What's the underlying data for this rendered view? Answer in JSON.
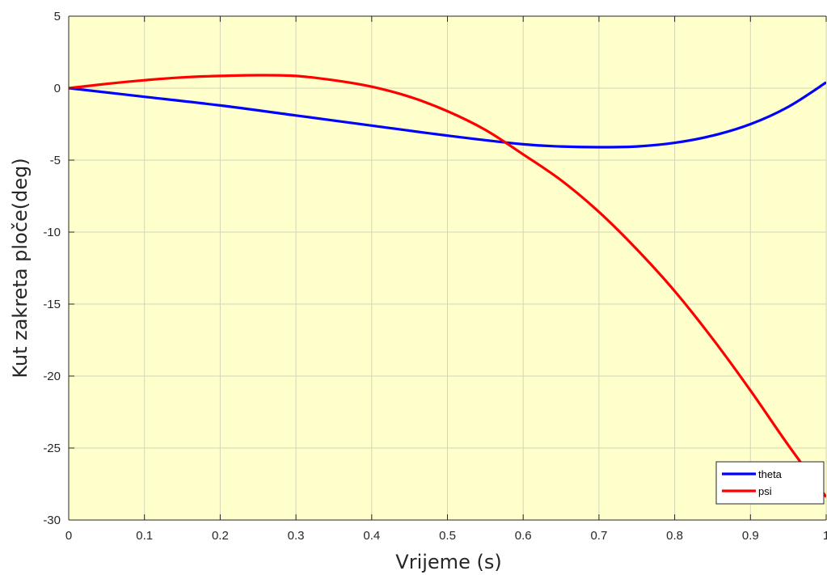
{
  "chart_data": {
    "type": "line",
    "title": "",
    "xlabel": "Vrijeme (s)",
    "ylabel": "Kut zakreta ploče(deg)",
    "xlim": [
      0,
      1
    ],
    "ylim": [
      -30,
      5
    ],
    "xticks": [
      0,
      0.1,
      0.2,
      0.3,
      0.4,
      0.5,
      0.6,
      0.7,
      0.8,
      0.9,
      1
    ],
    "xtick_labels": [
      "0",
      "0.1",
      "0.2",
      "0.3",
      "0.4",
      "0.5",
      "0.6",
      "0.7",
      "0.8",
      "0.9",
      "1"
    ],
    "yticks": [
      5,
      0,
      -5,
      -10,
      -15,
      -20,
      -25,
      -30
    ],
    "ytick_labels": [
      "5",
      "0",
      "-5",
      "-10",
      "-15",
      "-20",
      "-25",
      "-30"
    ],
    "grid": true,
    "legend_position": "bottom-right",
    "plot_background": "#ffffcc",
    "series": [
      {
        "name": "theta",
        "color": "#0000ff",
        "x": [
          0,
          0.1,
          0.2,
          0.3,
          0.4,
          0.5,
          0.6,
          0.65,
          0.7,
          0.75,
          0.8,
          0.85,
          0.9,
          0.95,
          1.0
        ],
        "y": [
          0,
          -0.6,
          -1.2,
          -1.9,
          -2.6,
          -3.3,
          -3.9,
          -4.05,
          -4.1,
          -4.05,
          -3.8,
          -3.3,
          -2.5,
          -1.3,
          0.4
        ]
      },
      {
        "name": "psi",
        "color": "#ff0000",
        "x": [
          0,
          0.05,
          0.1,
          0.15,
          0.2,
          0.25,
          0.3,
          0.35,
          0.4,
          0.45,
          0.5,
          0.55,
          0.6,
          0.65,
          0.7,
          0.75,
          0.8,
          0.85,
          0.9,
          0.95,
          1.0
        ],
        "y": [
          0,
          0.3,
          0.55,
          0.75,
          0.85,
          0.9,
          0.85,
          0.55,
          0.1,
          -0.6,
          -1.6,
          -2.9,
          -4.6,
          -6.4,
          -8.6,
          -11.2,
          -14.1,
          -17.4,
          -21.0,
          -24.8,
          -28.4
        ]
      }
    ]
  }
}
